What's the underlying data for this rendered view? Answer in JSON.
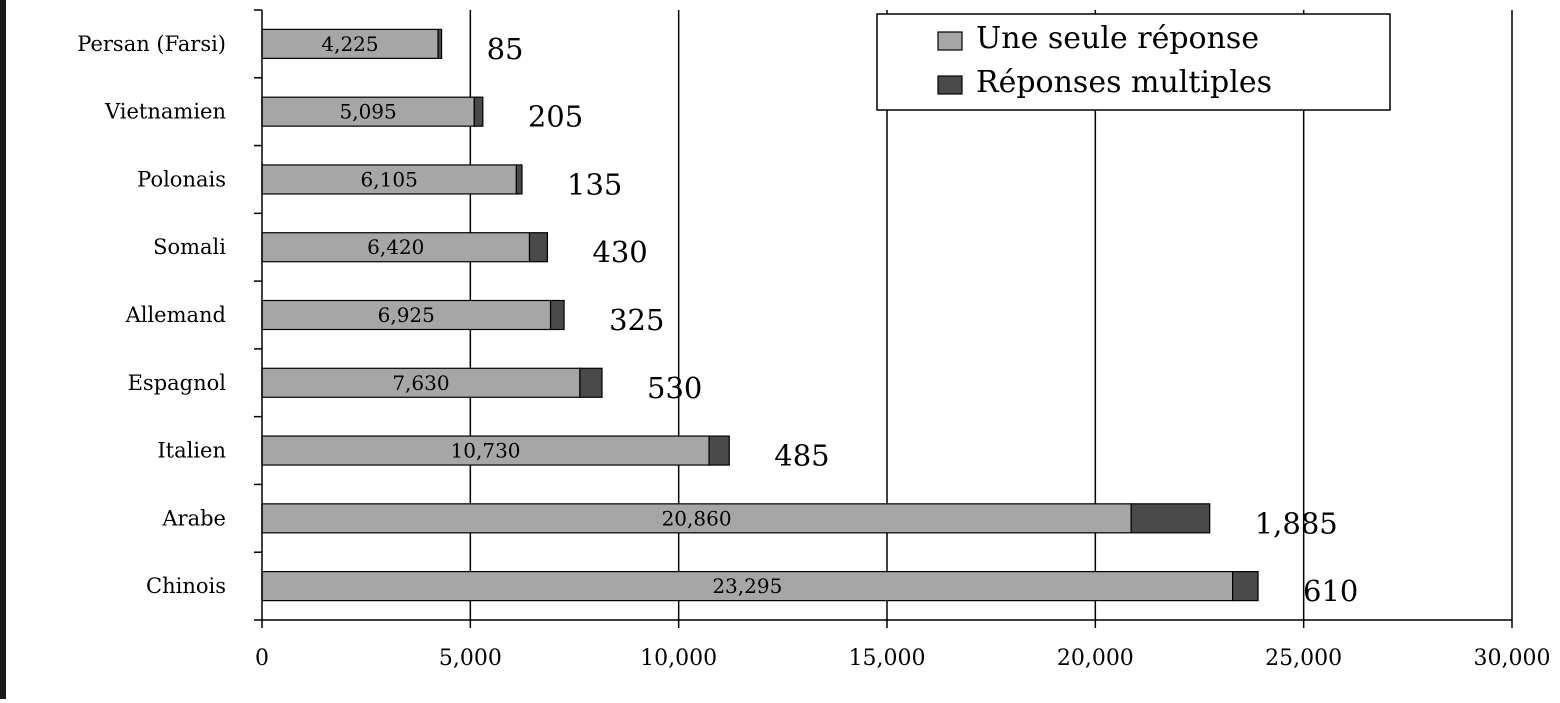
{
  "chart_data": {
    "type": "bar",
    "orientation": "horizontal",
    "stacked": true,
    "categories": [
      "Persan (Farsi)",
      "Vietnamien",
      "Polonais",
      "Somali",
      "Allemand",
      "Espagnol",
      "Italien",
      "Arabe",
      "Chinois"
    ],
    "series": [
      {
        "name": "Une seule réponse",
        "values": [
          4225,
          5095,
          6105,
          6420,
          6925,
          7630,
          10730,
          20860,
          23295
        ]
      },
      {
        "name": "Réponses multiples",
        "values": [
          85,
          205,
          135,
          430,
          325,
          530,
          485,
          1885,
          610
        ]
      }
    ],
    "single_labels": [
      "4,225",
      "5,095",
      "6,105",
      "6,420",
      "6,925",
      "7,630",
      "10,730",
      "20,860",
      "23,295"
    ],
    "multi_labels": [
      "85",
      "205",
      "135",
      "430",
      "325",
      "530",
      "485",
      "1,885",
      "610"
    ],
    "xlim": [
      0,
      30000
    ],
    "xticks": [
      0,
      5000,
      10000,
      15000,
      20000,
      25000,
      30000
    ],
    "xtick_labels": [
      "0",
      "5,000",
      "10,000",
      "15,000",
      "20,000",
      "25,000",
      "30,000"
    ],
    "grid": "vertical",
    "legend_position": "top-right",
    "colors": {
      "single": "#a6a6a6",
      "multi": "#4a4a4a",
      "axis": "#000000",
      "border": "#1a1a1a"
    }
  }
}
